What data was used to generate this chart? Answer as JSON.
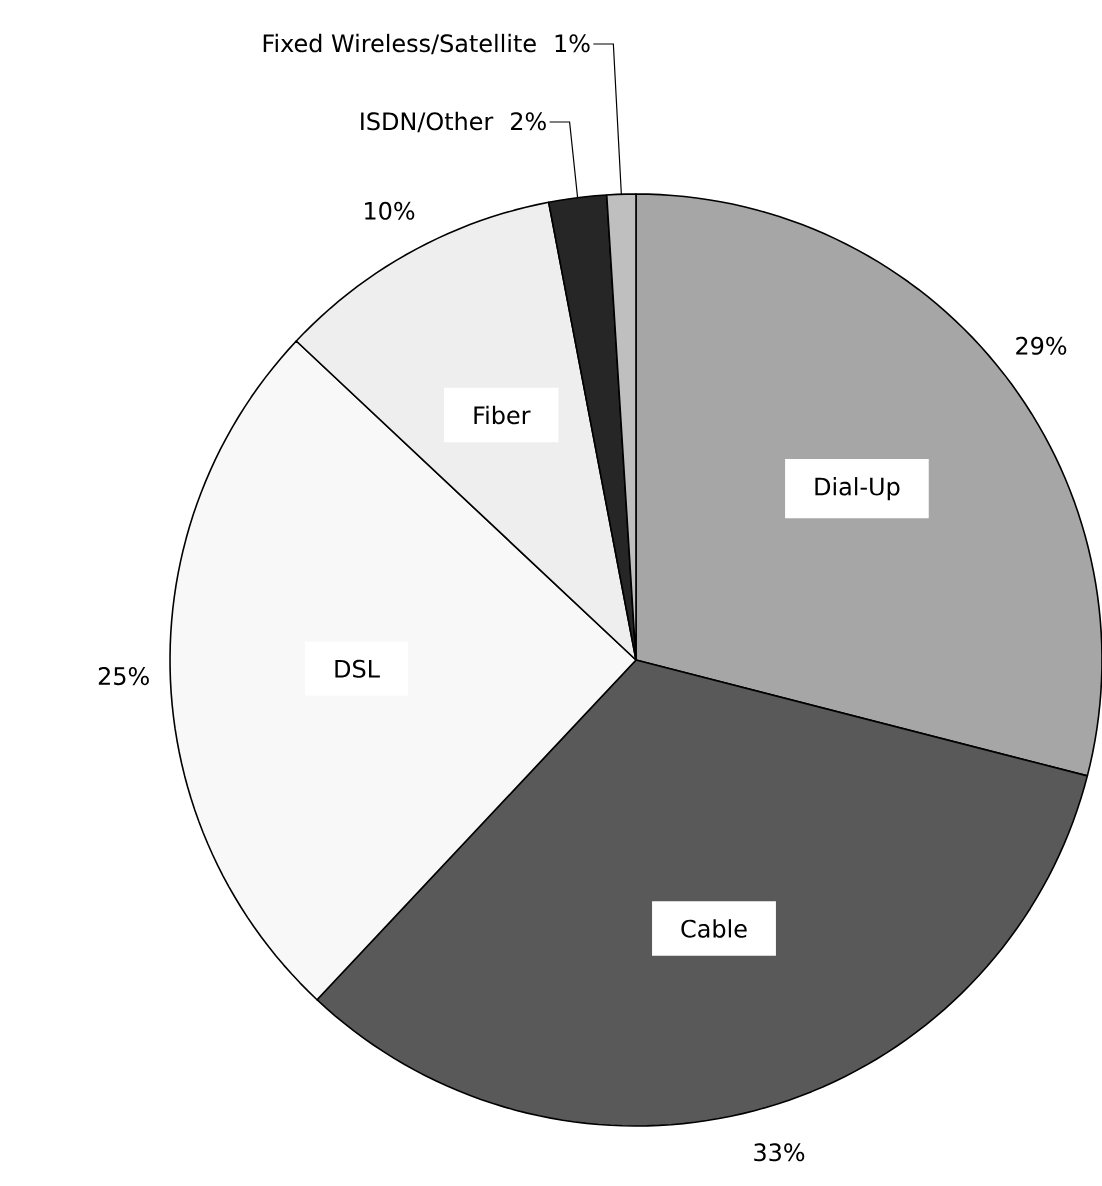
{
  "chart_data": {
    "type": "pie",
    "categories": [
      "Dial-Up",
      "Cable",
      "DSL",
      "Fiber",
      "ISDN/Other",
      "Fixed Wireless/Satellite"
    ],
    "values": [
      29,
      33,
      25,
      10,
      2,
      1
    ],
    "colors": [
      "#a6a6a6",
      "#595959",
      "#f8f8f8",
      "#eeeeee",
      "#262626",
      "#bfbfbf"
    ],
    "value_labels": [
      "29%",
      "33%",
      "25%",
      "10%",
      "2%",
      "1%"
    ]
  }
}
